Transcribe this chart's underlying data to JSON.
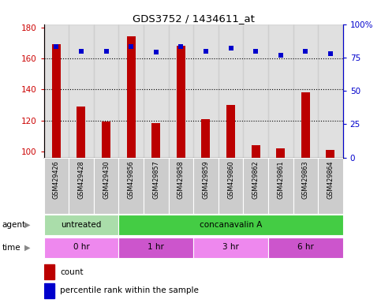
{
  "title": "GDS3752 / 1434611_at",
  "samples": [
    "GSM429426",
    "GSM429428",
    "GSM429430",
    "GSM429856",
    "GSM429857",
    "GSM429858",
    "GSM429859",
    "GSM429860",
    "GSM429862",
    "GSM429861",
    "GSM429863",
    "GSM429864"
  ],
  "count_values": [
    169,
    129,
    119,
    174,
    118,
    168,
    121,
    130,
    104,
    102,
    138,
    101
  ],
  "percentile_values": [
    83,
    80,
    80,
    83,
    79,
    83,
    80,
    82,
    80,
    77,
    80,
    78
  ],
  "ylim_left": [
    96,
    182
  ],
  "ylim_right": [
    0,
    100
  ],
  "yticks_left": [
    100,
    120,
    140,
    160,
    180
  ],
  "yticks_right": [
    0,
    25,
    50,
    75,
    100
  ],
  "bar_color": "#bb0000",
  "dot_color": "#0000cc",
  "gridline_values": [
    120,
    140,
    160
  ],
  "agent_labels": [
    {
      "text": "untreated",
      "start": 0,
      "end": 3,
      "color": "#aaddaa"
    },
    {
      "text": "concanavalin A",
      "start": 3,
      "end": 12,
      "color": "#44cc44"
    }
  ],
  "time_labels": [
    {
      "text": "0 hr",
      "start": 0,
      "end": 3,
      "color": "#ee88ee"
    },
    {
      "text": "1 hr",
      "start": 3,
      "end": 6,
      "color": "#cc55cc"
    },
    {
      "text": "3 hr",
      "start": 6,
      "end": 9,
      "color": "#ee88ee"
    },
    {
      "text": "6 hr",
      "start": 9,
      "end": 12,
      "color": "#cc55cc"
    }
  ],
  "legend_count_color": "#bb0000",
  "legend_pct_color": "#0000cc",
  "bg_color": "#ffffff",
  "left_tick_color": "#cc0000",
  "right_tick_color": "#0000cc",
  "bar_width": 0.35,
  "sample_bg_color": "#cccccc",
  "cell_edge_color": "#ffffff"
}
